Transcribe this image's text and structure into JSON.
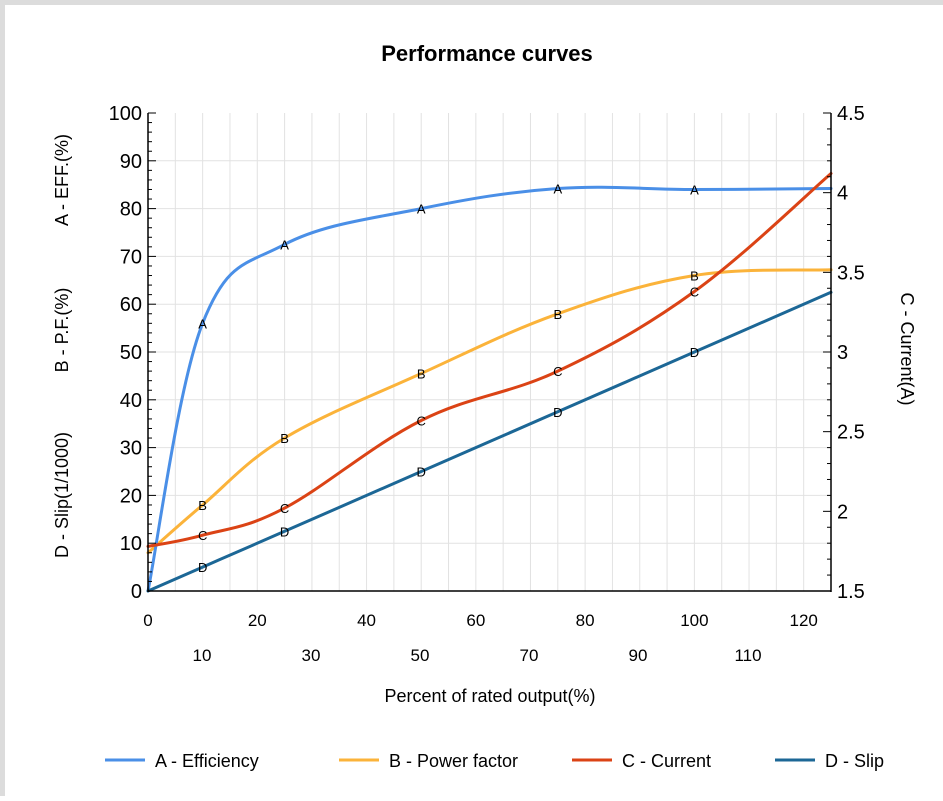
{
  "chart_data": {
    "type": "line",
    "title": "Performance curves",
    "xlabel": "Percent of rated output(%)",
    "ylabel_left": [
      "D - Slip(1/1000)",
      "B - P.F.(%)",
      "A - EFF.(%)"
    ],
    "ylabel_right": "C - Current(A)",
    "xlim": [
      0,
      125
    ],
    "ylim_left": [
      0,
      100
    ],
    "ylim_right": [
      1.5,
      4.5
    ],
    "x_ticks_top": [
      0,
      20,
      40,
      60,
      80,
      100,
      120
    ],
    "x_ticks_bottom": [
      10,
      30,
      50,
      70,
      90,
      110
    ],
    "x_ticks_top_labels": [
      "0",
      "20",
      "40",
      "60",
      "80",
      "100",
      "120"
    ],
    "x_ticks_bottom_labels": [
      "10",
      "30",
      "50",
      "70",
      "90",
      "110"
    ],
    "y_ticks_left": [
      0,
      10,
      20,
      30,
      40,
      50,
      60,
      70,
      80,
      90,
      100
    ],
    "y_ticks_left_labels": [
      "0",
      "10",
      "20",
      "30",
      "40",
      "50",
      "60",
      "70",
      "80",
      "90",
      "100"
    ],
    "y_ticks_right": [
      1.5,
      2,
      2.5,
      3,
      3.5,
      4,
      4.5
    ],
    "y_ticks_right_labels": [
      "1.5",
      "2",
      "2.5",
      "3",
      "3.5",
      "4",
      "4.5"
    ],
    "grid": true,
    "legend_position": "bottom",
    "series": [
      {
        "name": "A -  Efficiency",
        "marker_label": "A",
        "axis": "left",
        "color": "#4a8fe7",
        "x": [
          0,
          10,
          25,
          50,
          75,
          100,
          125
        ],
        "y": [
          0,
          56,
          72.5,
          80,
          84.2,
          84,
          84.2
        ],
        "markers_x": [
          10,
          25,
          50,
          75,
          100
        ]
      },
      {
        "name": "B - Power factor",
        "marker_label": "B",
        "axis": "left",
        "color": "#fbb33a",
        "x": [
          0,
          10,
          25,
          50,
          75,
          100,
          125
        ],
        "y": [
          8,
          18,
          32,
          45.5,
          58,
          66,
          67.2
        ],
        "markers_x": [
          10,
          25,
          50,
          75,
          100
        ]
      },
      {
        "name": "C - Current",
        "marker_label": "C",
        "axis": "right",
        "color": "#db4315",
        "x": [
          0,
          10,
          25,
          50,
          75,
          100,
          125
        ],
        "y": [
          1.78,
          1.85,
          2.02,
          2.57,
          2.88,
          3.38,
          4.12
        ],
        "markers_x": [
          10,
          25,
          50,
          75,
          100
        ]
      },
      {
        "name": "D - Slip",
        "marker_label": "D",
        "axis": "left",
        "color": "#1c6796",
        "x": [
          0,
          10,
          25,
          50,
          75,
          100,
          125
        ],
        "y": [
          0,
          5,
          12.5,
          25,
          37.5,
          50,
          62.5
        ],
        "markers_x": [
          10,
          25,
          50,
          75,
          100
        ]
      }
    ]
  }
}
